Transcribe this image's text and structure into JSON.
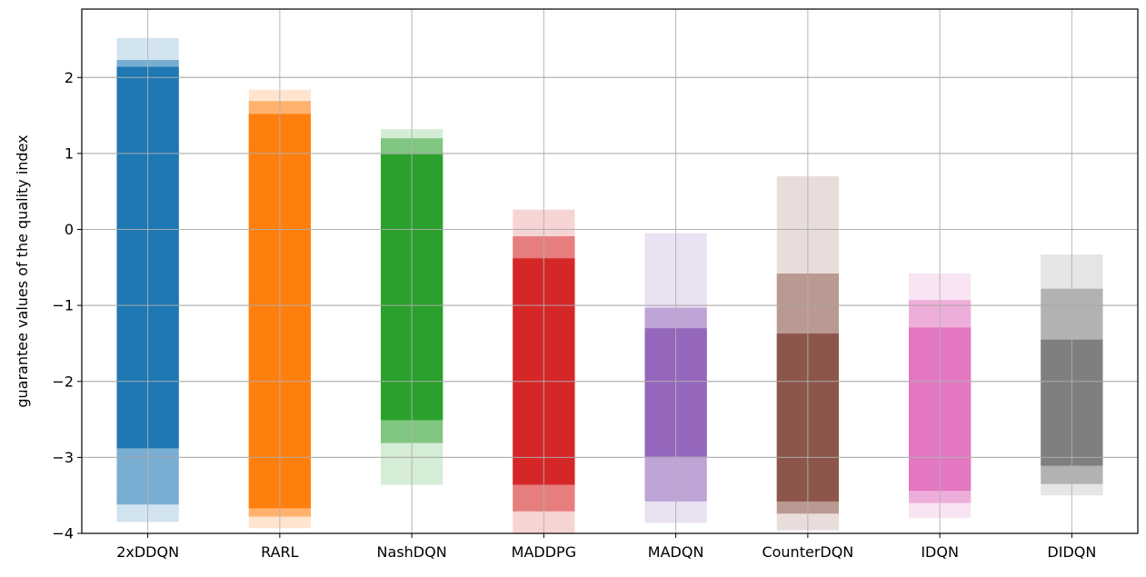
{
  "chart_data": {
    "type": "bar",
    "title": "",
    "xlabel": "",
    "ylabel": "guarantee values of the quality index",
    "ylim": [
      -4,
      2.9
    ],
    "yticks": [
      2,
      1,
      0,
      -1,
      -2,
      -3,
      -4
    ],
    "ytick_labels": [
      "2",
      "1",
      "0",
      "−1",
      "−2",
      "−3",
      "−4"
    ],
    "grid": true,
    "legend": "none",
    "categories": [
      "2xDDQN",
      "RARL",
      "NashDQN",
      "MADDPG",
      "MADQN",
      "CounterDQN",
      "IDQN",
      "DIDQN"
    ],
    "bars": [
      {
        "name": "2xDDQN",
        "color": "#1f77b4",
        "outer": [
          -3.85,
          2.52
        ],
        "middle": [
          -3.62,
          2.23
        ],
        "inner": [
          -2.88,
          2.14
        ]
      },
      {
        "name": "RARL",
        "color": "#ff7f0e",
        "outer": [
          -3.93,
          1.84
        ],
        "middle": [
          -3.78,
          1.69
        ],
        "inner": [
          -3.67,
          1.52
        ]
      },
      {
        "name": "NashDQN",
        "color": "#2ca02c",
        "outer": [
          -3.36,
          1.32
        ],
        "middle": [
          -2.81,
          1.2
        ],
        "inner": [
          -2.51,
          0.99
        ]
      },
      {
        "name": "MADDPG",
        "color": "#d62728",
        "outer": [
          -4.0,
          0.26
        ],
        "middle": [
          -3.71,
          -0.09
        ],
        "inner": [
          -3.36,
          -0.38
        ]
      },
      {
        "name": "MADQN",
        "color": "#9467bd",
        "outer": [
          -3.86,
          -0.05
        ],
        "middle": [
          -3.58,
          -1.03
        ],
        "inner": [
          -2.99,
          -1.3
        ]
      },
      {
        "name": "CounterDQN",
        "color": "#8c564b",
        "outer": [
          -3.96,
          0.7
        ],
        "middle": [
          -3.74,
          -0.58
        ],
        "inner": [
          -3.58,
          -1.37
        ]
      },
      {
        "name": "IDQN",
        "color": "#e377c2",
        "outer": [
          -3.8,
          -0.58
        ],
        "middle": [
          -3.6,
          -0.93
        ],
        "inner": [
          -3.44,
          -1.29
        ]
      },
      {
        "name": "DIDQN",
        "color": "#7f7f7f",
        "outer": [
          -3.5,
          -0.33
        ],
        "middle": [
          -3.35,
          -0.78
        ],
        "inner": [
          -3.11,
          -1.45
        ]
      }
    ]
  }
}
